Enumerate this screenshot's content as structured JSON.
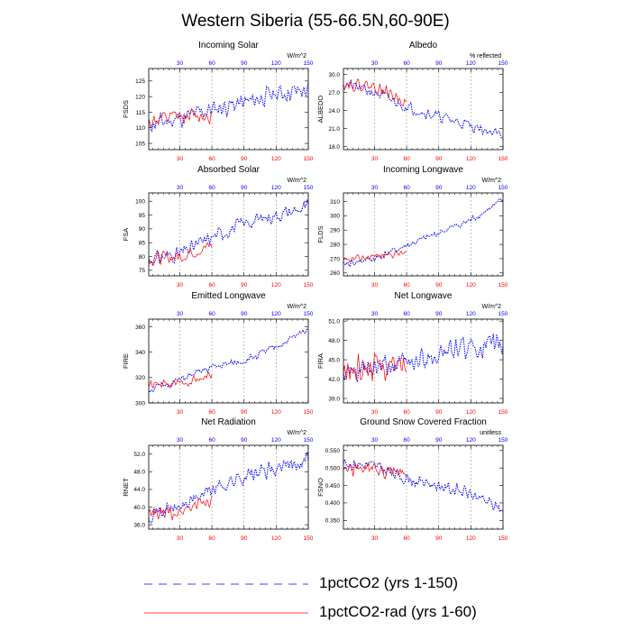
{
  "figure": {
    "title": "Western Siberia (55-66.5N,60-90E)",
    "legend": [
      {
        "label": "1pctCO2 (yrs 1-150)",
        "color": "#0000ff",
        "style": "dashed"
      },
      {
        "label": "1pctCO2-rad (yrs 1-60)",
        "color": "#ff0000",
        "style": "solid"
      }
    ]
  },
  "chart_data": [
    {
      "type": "line",
      "title": "Incoming Solar",
      "ylabel": "FSDS",
      "units": "W/m^2",
      "xlim": [
        1,
        150
      ],
      "xticks": [
        30,
        60,
        90,
        120,
        150
      ],
      "ylim": [
        103,
        129
      ],
      "yticks": [
        105,
        110,
        115,
        120,
        125
      ],
      "ytick_labels": [
        "105",
        "110",
        "115",
        "120",
        "125"
      ],
      "series": [
        {
          "color": "#0000ff",
          "dashed": true,
          "x": [
            1,
            150
          ],
          "keypoints": [
            [
              1,
              111
            ],
            [
              30,
              113
            ],
            [
              60,
              116
            ],
            [
              90,
              118
            ],
            [
              120,
              121
            ],
            [
              150,
              122
            ]
          ],
          "noise": 3.5,
          "seed": 11
        },
        {
          "color": "#ff0000",
          "dashed": false,
          "x": [
            1,
            60
          ],
          "keypoints": [
            [
              1,
              112
            ],
            [
              30,
              113.5
            ],
            [
              60,
              114
            ]
          ],
          "noise": 3,
          "seed": 12
        }
      ]
    },
    {
      "type": "line",
      "title": "Albedo",
      "ylabel": "ALBEDO",
      "units": "% reflected",
      "xlim": [
        1,
        150
      ],
      "xticks": [
        30,
        60,
        90,
        120,
        150
      ],
      "ylim": [
        17.5,
        31
      ],
      "yticks": [
        18,
        21,
        24,
        27,
        30
      ],
      "ytick_labels": [
        "18.0",
        "21.0",
        "24.0",
        "27.0",
        "30.0"
      ],
      "series": [
        {
          "color": "#0000ff",
          "dashed": true,
          "x": [
            1,
            150
          ],
          "keypoints": [
            [
              1,
              28.5
            ],
            [
              30,
              27
            ],
            [
              60,
              24.6
            ],
            [
              90,
              23
            ],
            [
              120,
              21.5
            ],
            [
              150,
              19.8
            ]
          ],
          "noise": 1.1,
          "seed": 21
        },
        {
          "color": "#ff0000",
          "dashed": false,
          "x": [
            1,
            60
          ],
          "keypoints": [
            [
              1,
              28.5
            ],
            [
              30,
              28
            ],
            [
              60,
              25.5
            ]
          ],
          "noise": 1.2,
          "seed": 22
        }
      ]
    },
    {
      "type": "line",
      "title": "Absorbed Solar",
      "ylabel": "FSA",
      "units": "W/m^2",
      "xlim": [
        1,
        150
      ],
      "xticks": [
        30,
        60,
        90,
        120,
        150
      ],
      "ylim": [
        73,
        103
      ],
      "yticks": [
        75,
        80,
        85,
        90,
        95,
        100
      ],
      "ytick_labels": [
        "75",
        "80",
        "85",
        "90",
        "95",
        "100"
      ],
      "series": [
        {
          "color": "#0000ff",
          "dashed": true,
          "x": [
            1,
            150
          ],
          "keypoints": [
            [
              1,
              79
            ],
            [
              30,
              81
            ],
            [
              60,
              87
            ],
            [
              90,
              92
            ],
            [
              120,
              95
            ],
            [
              150,
              98
            ]
          ],
          "noise": 3.2,
          "seed": 31
        },
        {
          "color": "#ff0000",
          "dashed": false,
          "x": [
            1,
            60
          ],
          "keypoints": [
            [
              1,
              79
            ],
            [
              30,
              80
            ],
            [
              60,
              84
            ]
          ],
          "noise": 2.8,
          "seed": 32
        }
      ]
    },
    {
      "type": "line",
      "title": "Incoming Longwave",
      "ylabel": "FLDS",
      "units": "W/m^2",
      "xlim": [
        1,
        150
      ],
      "xticks": [
        30,
        60,
        90,
        120,
        150
      ],
      "ylim": [
        258,
        316
      ],
      "yticks": [
        260,
        270,
        280,
        290,
        300,
        310
      ],
      "ytick_labels": [
        "260",
        "270",
        "280",
        "290",
        "300",
        "310"
      ],
      "series": [
        {
          "color": "#0000ff",
          "dashed": true,
          "x": [
            1,
            150
          ],
          "keypoints": [
            [
              1,
              266
            ],
            [
              30,
              270
            ],
            [
              60,
              279
            ],
            [
              90,
              288
            ],
            [
              120,
              297
            ],
            [
              150,
              311
            ]
          ],
          "noise": 3,
          "seed": 41
        },
        {
          "color": "#ff0000",
          "dashed": false,
          "x": [
            1,
            60
          ],
          "keypoints": [
            [
              1,
              268
            ],
            [
              30,
              272
            ],
            [
              60,
              274
            ]
          ],
          "noise": 3,
          "seed": 42
        }
      ]
    },
    {
      "type": "line",
      "title": "Emitted Longwave",
      "ylabel": "FIRE",
      "units": "W/m^2",
      "xlim": [
        1,
        150
      ],
      "xticks": [
        30,
        60,
        90,
        120,
        150
      ],
      "ylim": [
        300,
        366
      ],
      "yticks": [
        300,
        320,
        340,
        360
      ],
      "ytick_labels": [
        "300",
        "320",
        "340",
        "360"
      ],
      "series": [
        {
          "color": "#0000ff",
          "dashed": true,
          "x": [
            1,
            150
          ],
          "keypoints": [
            [
              1,
              310
            ],
            [
              30,
              318
            ],
            [
              60,
              328
            ],
            [
              90,
              333
            ],
            [
              120,
              344
            ],
            [
              150,
              358
            ]
          ],
          "noise": 3.5,
          "seed": 51
        },
        {
          "color": "#ff0000",
          "dashed": false,
          "x": [
            1,
            60
          ],
          "keypoints": [
            [
              1,
              314
            ],
            [
              30,
              315
            ],
            [
              60,
              322
            ]
          ],
          "noise": 4,
          "seed": 52
        }
      ]
    },
    {
      "type": "line",
      "title": "Net Longwave",
      "ylabel": "FIRA",
      "units": "W/m^2",
      "xlim": [
        1,
        150
      ],
      "xticks": [
        30,
        60,
        90,
        120,
        150
      ],
      "ylim": [
        38.3,
        51.3
      ],
      "yticks": [
        39,
        42,
        45,
        48,
        51
      ],
      "ytick_labels": [
        "39.0",
        "42.0",
        "45.0",
        "48.0",
        "51.0"
      ],
      "series": [
        {
          "color": "#0000ff",
          "dashed": true,
          "x": [
            1,
            150
          ],
          "keypoints": [
            [
              1,
              42.5
            ],
            [
              30,
              43.5
            ],
            [
              60,
              44.5
            ],
            [
              90,
              46
            ],
            [
              120,
              47
            ],
            [
              150,
              47
            ]
          ],
          "noise": 2.2,
          "seed": 61
        },
        {
          "color": "#ff0000",
          "dashed": false,
          "x": [
            1,
            60
          ],
          "keypoints": [
            [
              1,
              43
            ],
            [
              30,
              44
            ],
            [
              60,
              44
            ]
          ],
          "noise": 2.5,
          "seed": 62
        }
      ]
    },
    {
      "type": "line",
      "title": "Net Radiation",
      "ylabel": "RNET",
      "units": "W/m^2",
      "xlim": [
        1,
        150
      ],
      "xticks": [
        30,
        60,
        90,
        120,
        150
      ],
      "ylim": [
        35,
        54
      ],
      "yticks": [
        36,
        40,
        44,
        48,
        52
      ],
      "ytick_labels": [
        "36.0",
        "40.0",
        "44.0",
        "48.0",
        "52.0"
      ],
      "series": [
        {
          "color": "#0000ff",
          "dashed": true,
          "x": [
            1,
            150
          ],
          "keypoints": [
            [
              1,
              38.5
            ],
            [
              30,
              40
            ],
            [
              60,
              44
            ],
            [
              90,
              47
            ],
            [
              120,
              48.5
            ],
            [
              150,
              51
            ]
          ],
          "noise": 2.2,
          "seed": 71
        },
        {
          "color": "#ff0000",
          "dashed": false,
          "x": [
            1,
            60
          ],
          "keypoints": [
            [
              1,
              38
            ],
            [
              30,
              39
            ],
            [
              60,
              42
            ]
          ],
          "noise": 2,
          "seed": 72
        }
      ]
    },
    {
      "type": "line",
      "title": "Ground Snow Covered Fraction",
      "ylabel": "FSNO",
      "units": "unitless",
      "xlim": [
        1,
        150
      ],
      "xticks": [
        30,
        60,
        90,
        120,
        150
      ],
      "ylim": [
        0.325,
        0.565
      ],
      "yticks": [
        0.35,
        0.4,
        0.45,
        0.5,
        0.55
      ],
      "ytick_labels": [
        "0.350",
        "0.400",
        "0.450",
        "0.500",
        "0.550"
      ],
      "series": [
        {
          "color": "#0000ff",
          "dashed": true,
          "x": [
            1,
            150
          ],
          "keypoints": [
            [
              1,
              0.515
            ],
            [
              30,
              0.505
            ],
            [
              60,
              0.47
            ],
            [
              90,
              0.45
            ],
            [
              120,
              0.425
            ],
            [
              150,
              0.38
            ]
          ],
          "noise": 0.022,
          "seed": 81
        },
        {
          "color": "#ff0000",
          "dashed": false,
          "x": [
            1,
            60
          ],
          "keypoints": [
            [
              1,
              0.5
            ],
            [
              30,
              0.495
            ],
            [
              60,
              0.48
            ]
          ],
          "noise": 0.025,
          "seed": 82
        }
      ]
    }
  ]
}
